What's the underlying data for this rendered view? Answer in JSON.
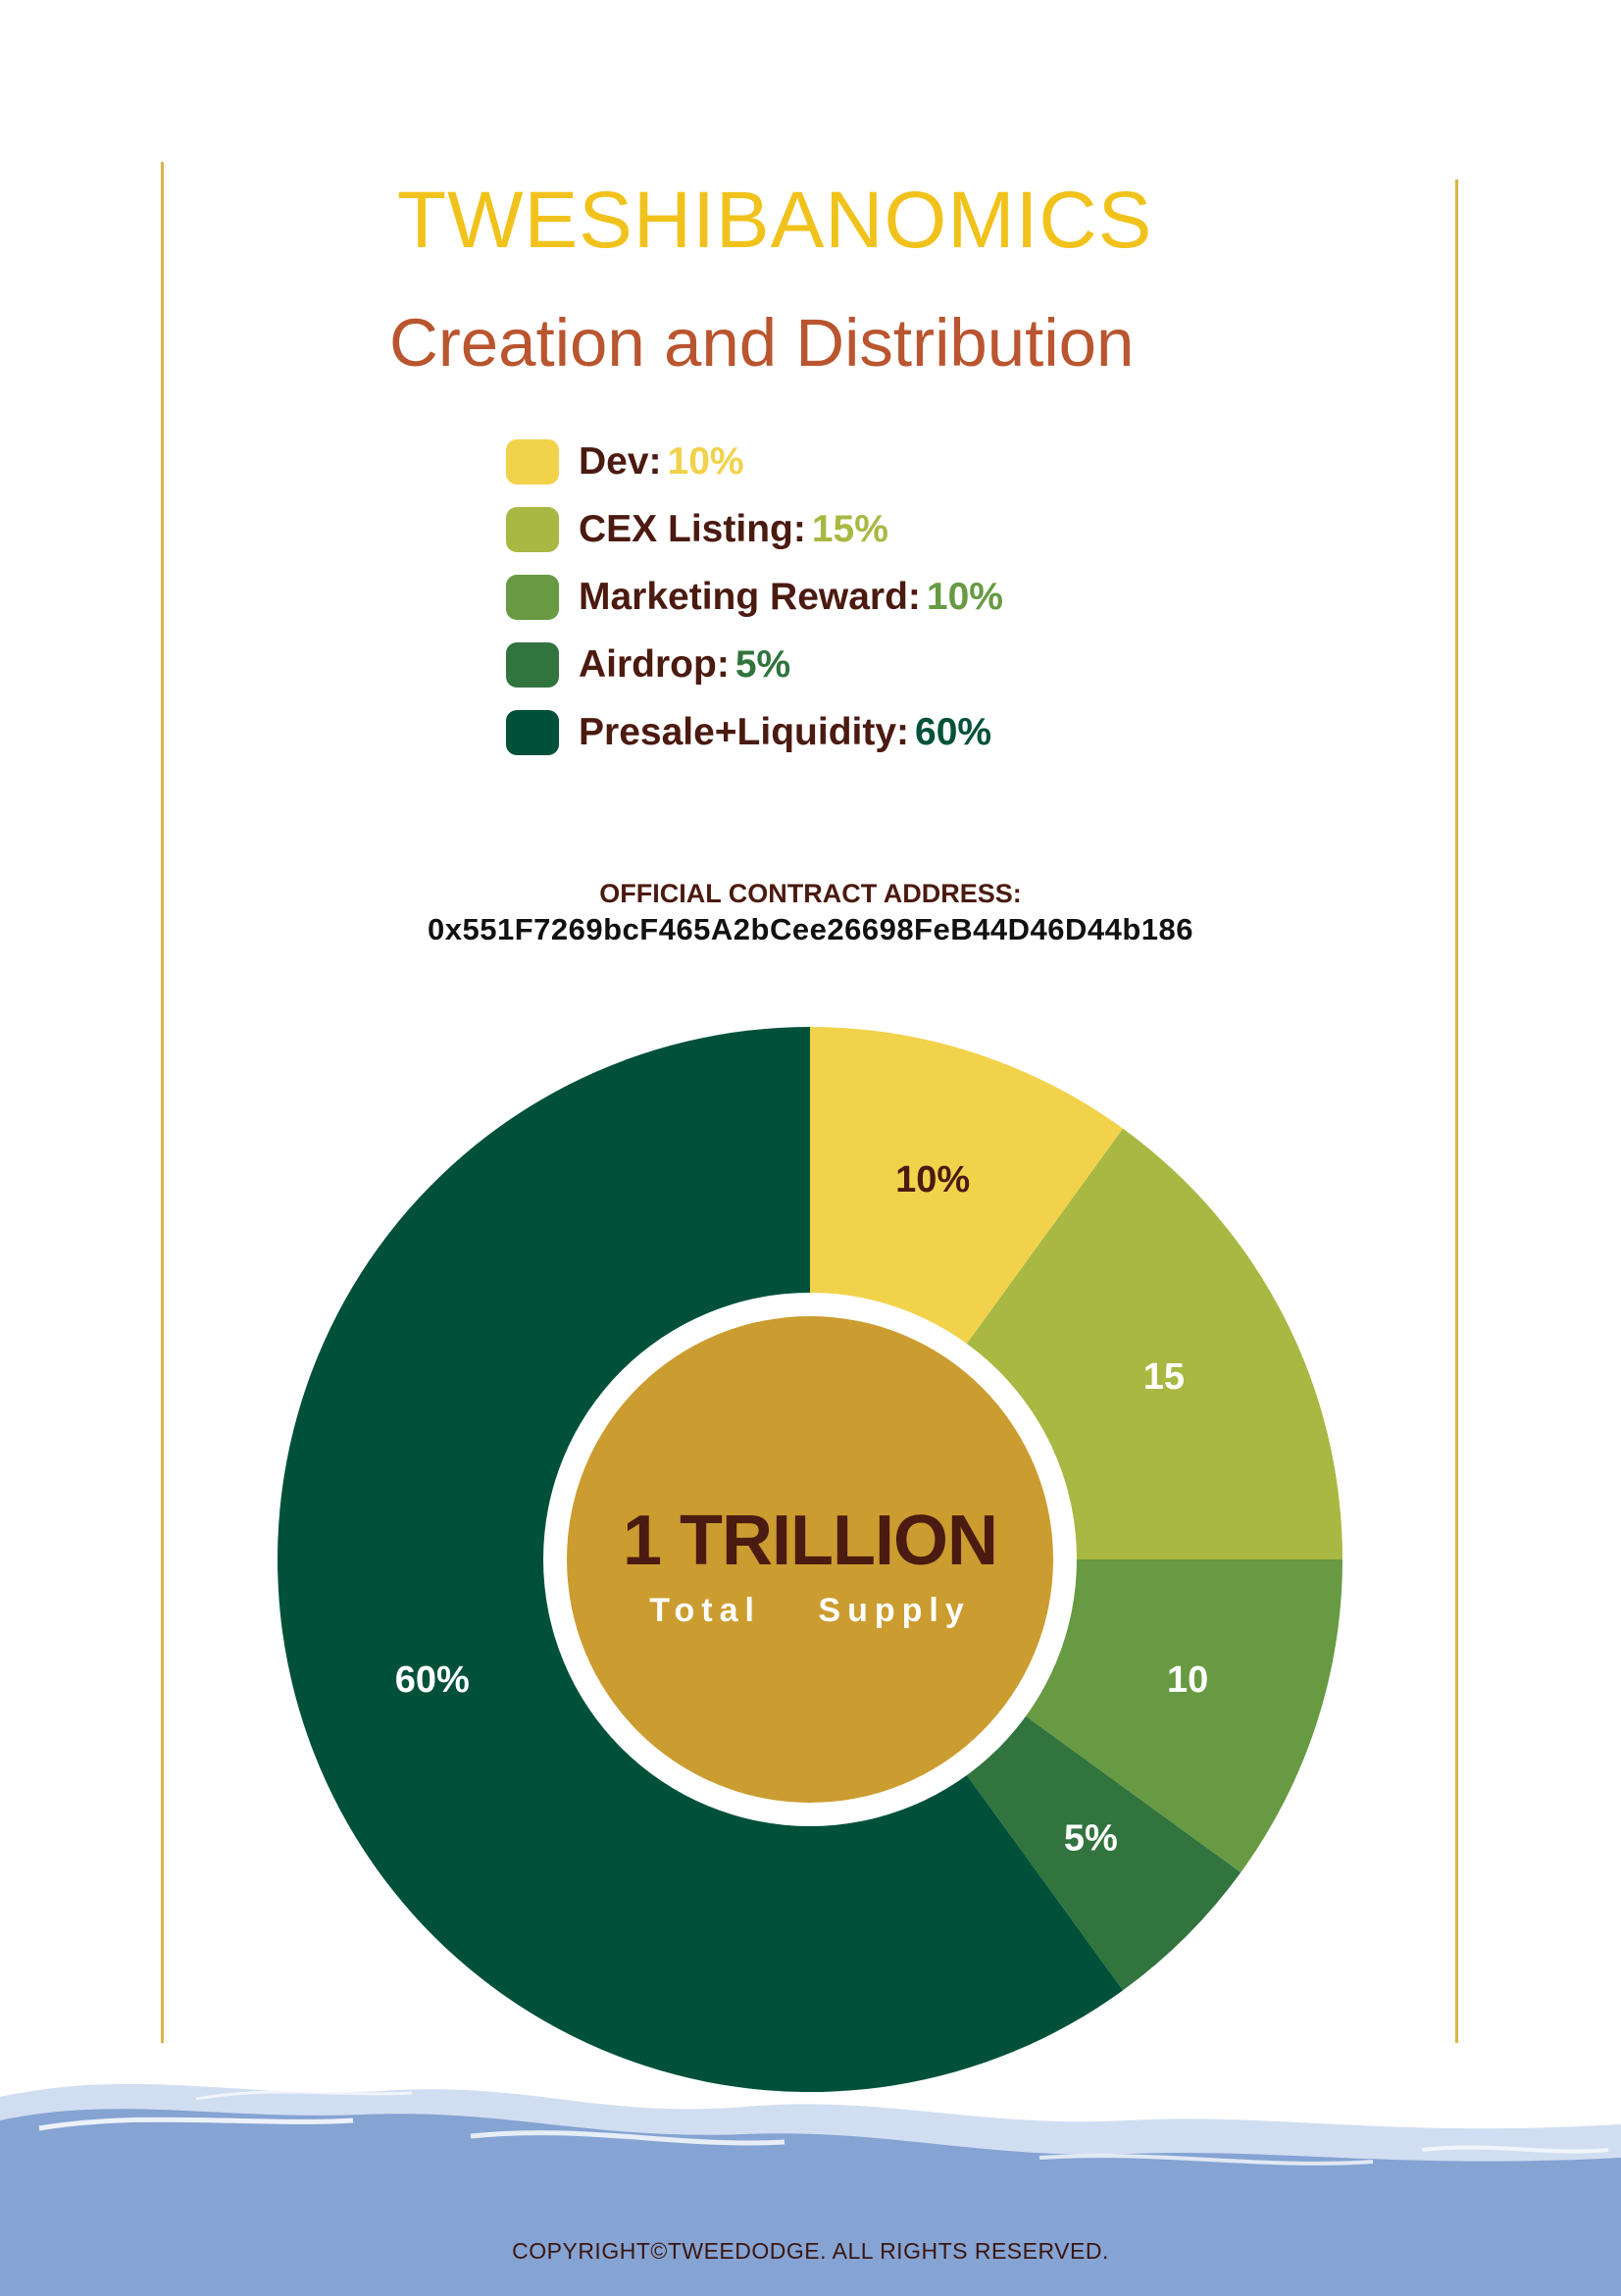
{
  "header": {
    "title": "TWESHIBANOMICS",
    "subtitle": "Creation and Distribution"
  },
  "legend": [
    {
      "label": "Dev:",
      "value": "10%",
      "color": "#f2d24b"
    },
    {
      "label": "CEX Listing:",
      "value": "15%",
      "color": "#a8b843"
    },
    {
      "label": "Marketing Reward:",
      "value": "10%",
      "color": "#679a42"
    },
    {
      "label": "Airdrop:",
      "value": "5%",
      "color": "#31743e"
    },
    {
      "label": "Presale+Liquidity:",
      "value": "60%",
      "color": "#01513a"
    }
  ],
  "contract": {
    "label": "OFFICIAL CONTRACT ADDRESS:",
    "address": "0x551F7269bcF465A2bCee26698FeB44D46D44b186"
  },
  "center": {
    "amount": "1 TRILLION",
    "caption": "Total Supply",
    "fill_color": "#cb9c2f"
  },
  "chart_data": {
    "type": "pie",
    "donut": true,
    "categories": [
      "Dev",
      "CEX Listing",
      "Marketing Reward",
      "Airdrop",
      "Presale+Liquidity"
    ],
    "values": [
      10,
      15,
      10,
      5,
      60
    ],
    "data_labels": [
      "10%",
      "15",
      "10",
      "5%",
      "60%"
    ],
    "colors": [
      "#f2d24b",
      "#a8b843",
      "#679a42",
      "#31743e",
      "#01513a"
    ],
    "label_colors": [
      "#4b1a10",
      "#ffffff",
      "#ffffff",
      "#ffffff",
      "#ffffff"
    ],
    "start": "12 o'clock, clockwise"
  },
  "footer": {
    "copyright": "COPYRIGHT©TWEEDODGE. ALL RIGHTS RESERVED."
  },
  "colors": {
    "title": "#f1c21b",
    "subtitle": "#b9552f",
    "legend_text": "#4b1a10",
    "vertical_rules": "#d9b44a",
    "water": "#85a3d3"
  }
}
